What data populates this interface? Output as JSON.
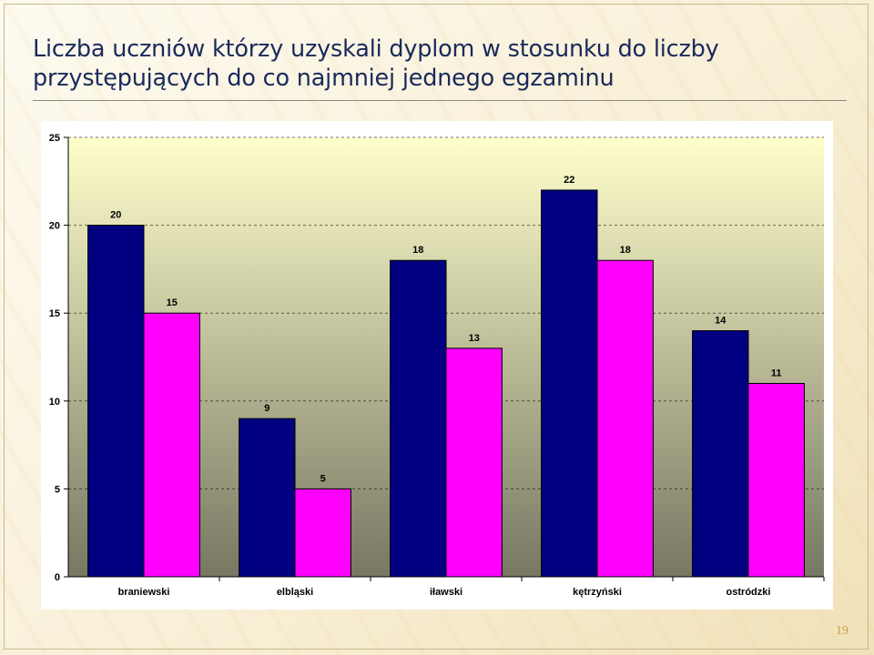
{
  "slide": {
    "title": "Liczba uczniów którzy uzyskali dyplom w stosunku do liczby przystępujących do co najmniej jednego egzaminu",
    "page_number": "19"
  },
  "colors": {
    "series_1": "#000080",
    "series_2": "#ff00ff",
    "plot_bg_top": "#ffffcc",
    "plot_bg_bottom": "#777763"
  },
  "chart_data": {
    "type": "bar",
    "title": "",
    "xlabel": "",
    "ylabel": "",
    "categories": [
      "braniewski",
      "elbląski",
      "iławski",
      "kętrzyński",
      "ostródzki"
    ],
    "series": [
      {
        "values": [
          20,
          9,
          18,
          22,
          14
        ]
      },
      {
        "values": [
          15,
          5,
          13,
          18,
          11
        ]
      }
    ],
    "ylim": [
      0,
      25
    ],
    "yticks": [
      0,
      5,
      10,
      15,
      20,
      25
    ],
    "grid": true,
    "legend": "none",
    "data_labels": true
  }
}
